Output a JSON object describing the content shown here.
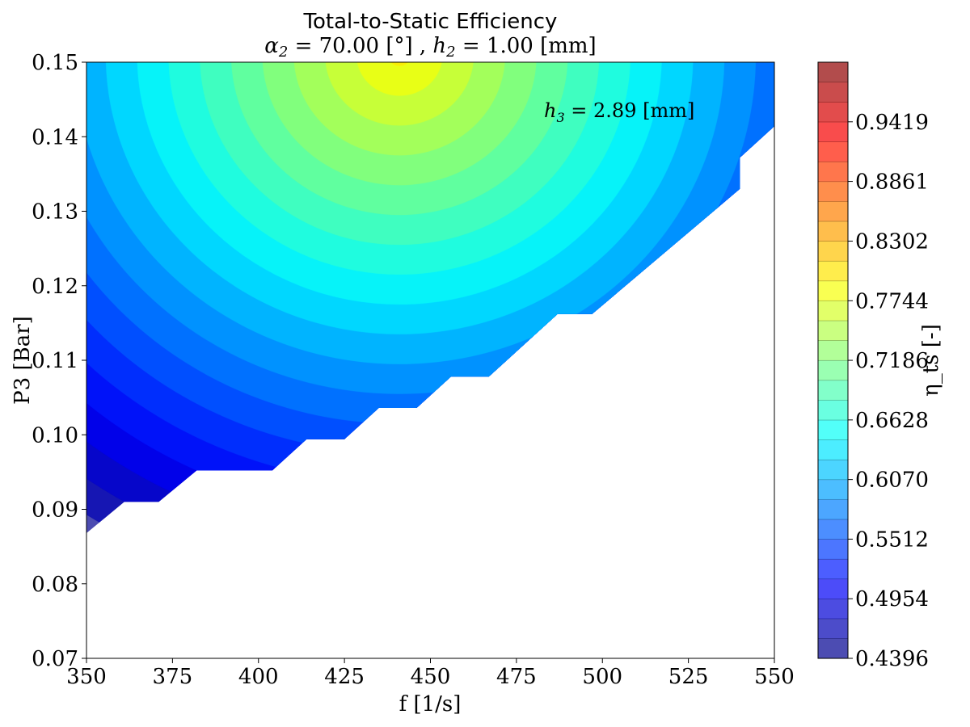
{
  "figure": {
    "title": "Total-to-Static Efficiency",
    "subtitle": {
      "alpha_symbol": "α",
      "alpha_sub": "2",
      "alpha_value": " = 70.00 [°] , ",
      "h_symbol": "h",
      "h_sub": "2",
      "h_value": " = 1.00 [mm]"
    },
    "annotation": {
      "symbol": "h",
      "sub": "3",
      "value": " = 2.89 [mm]"
    }
  },
  "chart_data": {
    "type": "contour",
    "xlabel": "f [1/s]",
    "ylabel": "P3 [Bar]",
    "colorbar_label": "η_ts [-]",
    "xlim": [
      350,
      550
    ],
    "ylim": [
      0.07,
      0.15
    ],
    "x_ticks": [
      "350",
      "375",
      "400",
      "425",
      "450",
      "475",
      "500",
      "525",
      "550"
    ],
    "y_ticks": [
      "0.07",
      "0.08",
      "0.09",
      "0.10",
      "0.11",
      "0.12",
      "0.13",
      "0.14",
      "0.15"
    ],
    "colorbar": {
      "range": [
        0.4396,
        0.9977
      ],
      "tick_labels": [
        "0.4396",
        "0.4954",
        "0.5512",
        "0.6070",
        "0.6628",
        "0.7186",
        "0.7744",
        "0.8302",
        "0.8861",
        "0.9419"
      ],
      "levels": 30,
      "colormap": "jet",
      "alpha": 0.7
    },
    "peak": {
      "f": 441,
      "P3": 0.151,
      "eta": 0.8
    },
    "valid_region_boundary": [
      [
        350,
        0.0868
      ],
      [
        361,
        0.091
      ],
      [
        371,
        0.091
      ],
      [
        382,
        0.0952
      ],
      [
        404,
        0.0952
      ],
      [
        414,
        0.0994
      ],
      [
        425,
        0.0994
      ],
      [
        435,
        0.1036
      ],
      [
        446,
        0.1036
      ],
      [
        456,
        0.1078
      ],
      [
        467,
        0.1078
      ],
      [
        487,
        0.1162
      ],
      [
        497,
        0.1162
      ],
      [
        540,
        0.133
      ],
      [
        540,
        0.1372
      ],
      [
        550,
        0.1414
      ]
    ],
    "colors": {
      "contour_min": "#00007f",
      "contour_mid": "#00ffff",
      "contour_peak": "#ffff00",
      "contour_max": "#7f0000"
    }
  }
}
